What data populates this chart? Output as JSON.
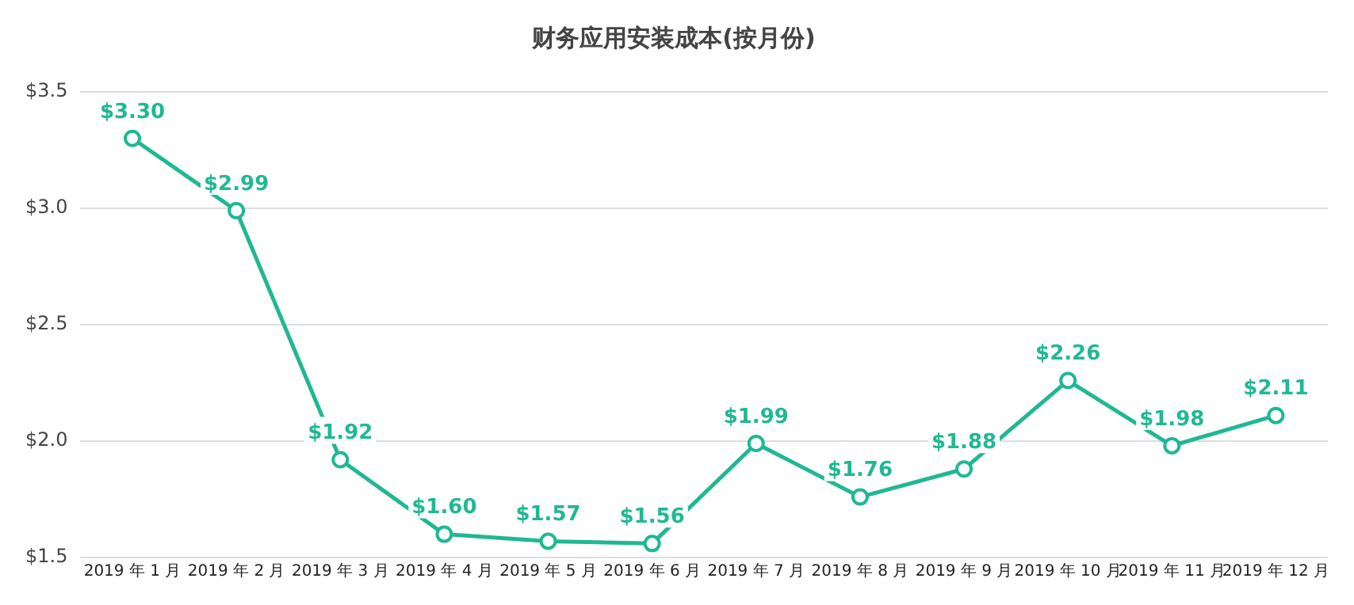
{
  "chart_data": {
    "type": "line",
    "title": "财务应用安装成本(按月份)",
    "categories": [
      "2019 年 1 月",
      "2019 年 2 月",
      "2019 年 3 月",
      "2019 年 4 月",
      "2019 年 5 月",
      "2019 年 6 月",
      "2019 年 7 月",
      "2019 年 8 月",
      "2019 年 9 月",
      "2019 年 10 月",
      "2019 年 11 月",
      "2019 年 12 月"
    ],
    "series": [
      {
        "color": "#20b894",
        "values": [
          3.3,
          2.99,
          1.92,
          1.6,
          1.57,
          1.56,
          1.99,
          1.76,
          1.88,
          2.26,
          1.98,
          2.11
        ],
        "value_labels": [
          "$3.30",
          "$2.99",
          "$1.92",
          "$1.60",
          "$1.57",
          "$1.56",
          "$1.99",
          "$1.76",
          "$1.88",
          "$2.26",
          "$1.98",
          "$2.11"
        ]
      }
    ],
    "ylim": [
      1.5,
      3.5
    ],
    "yticks": [
      {
        "value": 1.5,
        "label": "$1.5"
      },
      {
        "value": 2.0,
        "label": "$2.0"
      },
      {
        "value": 2.5,
        "label": "$2.5"
      },
      {
        "value": 3.0,
        "label": "$3.0"
      },
      {
        "value": 3.5,
        "label": "$3.5"
      }
    ],
    "grid": "y",
    "legend": false,
    "marker": "circle",
    "line_style": "solid"
  }
}
